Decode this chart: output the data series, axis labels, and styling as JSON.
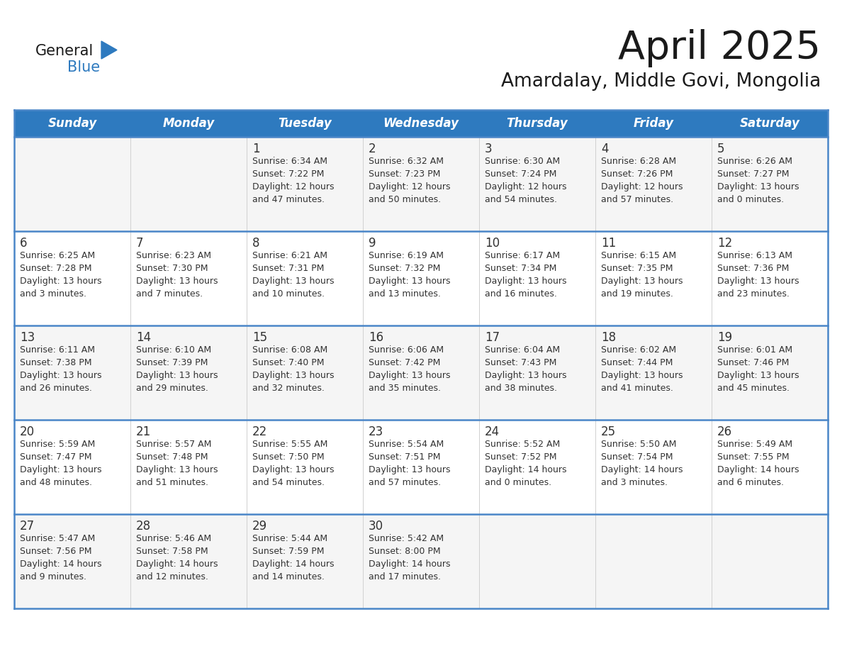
{
  "title": "April 2025",
  "subtitle": "Amardalay, Middle Govi, Mongolia",
  "days_of_week": [
    "Sunday",
    "Monday",
    "Tuesday",
    "Wednesday",
    "Thursday",
    "Friday",
    "Saturday"
  ],
  "header_bg": "#2E7ABF",
  "header_text_color": "#FFFFFF",
  "row_bg": "#FFFFFF",
  "row_bg_alt": "#F5F5F5",
  "cell_text_color": "#333333",
  "border_color": "#2E7ABF",
  "row_divider_color": "#4A86C8",
  "vert_divider_color": "#D0D0D0",
  "title_color": "#1a1a1a",
  "subtitle_color": "#1a1a1a",
  "logo_general_color": "#1a1a1a",
  "logo_blue_color": "#2E7ABF",
  "calendar_data": [
    [
      {
        "day": "",
        "info": ""
      },
      {
        "day": "",
        "info": ""
      },
      {
        "day": "1",
        "info": "Sunrise: 6:34 AM\nSunset: 7:22 PM\nDaylight: 12 hours\nand 47 minutes."
      },
      {
        "day": "2",
        "info": "Sunrise: 6:32 AM\nSunset: 7:23 PM\nDaylight: 12 hours\nand 50 minutes."
      },
      {
        "day": "3",
        "info": "Sunrise: 6:30 AM\nSunset: 7:24 PM\nDaylight: 12 hours\nand 54 minutes."
      },
      {
        "day": "4",
        "info": "Sunrise: 6:28 AM\nSunset: 7:26 PM\nDaylight: 12 hours\nand 57 minutes."
      },
      {
        "day": "5",
        "info": "Sunrise: 6:26 AM\nSunset: 7:27 PM\nDaylight: 13 hours\nand 0 minutes."
      }
    ],
    [
      {
        "day": "6",
        "info": "Sunrise: 6:25 AM\nSunset: 7:28 PM\nDaylight: 13 hours\nand 3 minutes."
      },
      {
        "day": "7",
        "info": "Sunrise: 6:23 AM\nSunset: 7:30 PM\nDaylight: 13 hours\nand 7 minutes."
      },
      {
        "day": "8",
        "info": "Sunrise: 6:21 AM\nSunset: 7:31 PM\nDaylight: 13 hours\nand 10 minutes."
      },
      {
        "day": "9",
        "info": "Sunrise: 6:19 AM\nSunset: 7:32 PM\nDaylight: 13 hours\nand 13 minutes."
      },
      {
        "day": "10",
        "info": "Sunrise: 6:17 AM\nSunset: 7:34 PM\nDaylight: 13 hours\nand 16 minutes."
      },
      {
        "day": "11",
        "info": "Sunrise: 6:15 AM\nSunset: 7:35 PM\nDaylight: 13 hours\nand 19 minutes."
      },
      {
        "day": "12",
        "info": "Sunrise: 6:13 AM\nSunset: 7:36 PM\nDaylight: 13 hours\nand 23 minutes."
      }
    ],
    [
      {
        "day": "13",
        "info": "Sunrise: 6:11 AM\nSunset: 7:38 PM\nDaylight: 13 hours\nand 26 minutes."
      },
      {
        "day": "14",
        "info": "Sunrise: 6:10 AM\nSunset: 7:39 PM\nDaylight: 13 hours\nand 29 minutes."
      },
      {
        "day": "15",
        "info": "Sunrise: 6:08 AM\nSunset: 7:40 PM\nDaylight: 13 hours\nand 32 minutes."
      },
      {
        "day": "16",
        "info": "Sunrise: 6:06 AM\nSunset: 7:42 PM\nDaylight: 13 hours\nand 35 minutes."
      },
      {
        "day": "17",
        "info": "Sunrise: 6:04 AM\nSunset: 7:43 PM\nDaylight: 13 hours\nand 38 minutes."
      },
      {
        "day": "18",
        "info": "Sunrise: 6:02 AM\nSunset: 7:44 PM\nDaylight: 13 hours\nand 41 minutes."
      },
      {
        "day": "19",
        "info": "Sunrise: 6:01 AM\nSunset: 7:46 PM\nDaylight: 13 hours\nand 45 minutes."
      }
    ],
    [
      {
        "day": "20",
        "info": "Sunrise: 5:59 AM\nSunset: 7:47 PM\nDaylight: 13 hours\nand 48 minutes."
      },
      {
        "day": "21",
        "info": "Sunrise: 5:57 AM\nSunset: 7:48 PM\nDaylight: 13 hours\nand 51 minutes."
      },
      {
        "day": "22",
        "info": "Sunrise: 5:55 AM\nSunset: 7:50 PM\nDaylight: 13 hours\nand 54 minutes."
      },
      {
        "day": "23",
        "info": "Sunrise: 5:54 AM\nSunset: 7:51 PM\nDaylight: 13 hours\nand 57 minutes."
      },
      {
        "day": "24",
        "info": "Sunrise: 5:52 AM\nSunset: 7:52 PM\nDaylight: 14 hours\nand 0 minutes."
      },
      {
        "day": "25",
        "info": "Sunrise: 5:50 AM\nSunset: 7:54 PM\nDaylight: 14 hours\nand 3 minutes."
      },
      {
        "day": "26",
        "info": "Sunrise: 5:49 AM\nSunset: 7:55 PM\nDaylight: 14 hours\nand 6 minutes."
      }
    ],
    [
      {
        "day": "27",
        "info": "Sunrise: 5:47 AM\nSunset: 7:56 PM\nDaylight: 14 hours\nand 9 minutes."
      },
      {
        "day": "28",
        "info": "Sunrise: 5:46 AM\nSunset: 7:58 PM\nDaylight: 14 hours\nand 12 minutes."
      },
      {
        "day": "29",
        "info": "Sunrise: 5:44 AM\nSunset: 7:59 PM\nDaylight: 14 hours\nand 14 minutes."
      },
      {
        "day": "30",
        "info": "Sunrise: 5:42 AM\nSunset: 8:00 PM\nDaylight: 14 hours\nand 17 minutes."
      },
      {
        "day": "",
        "info": ""
      },
      {
        "day": "",
        "info": ""
      },
      {
        "day": "",
        "info": ""
      }
    ]
  ]
}
